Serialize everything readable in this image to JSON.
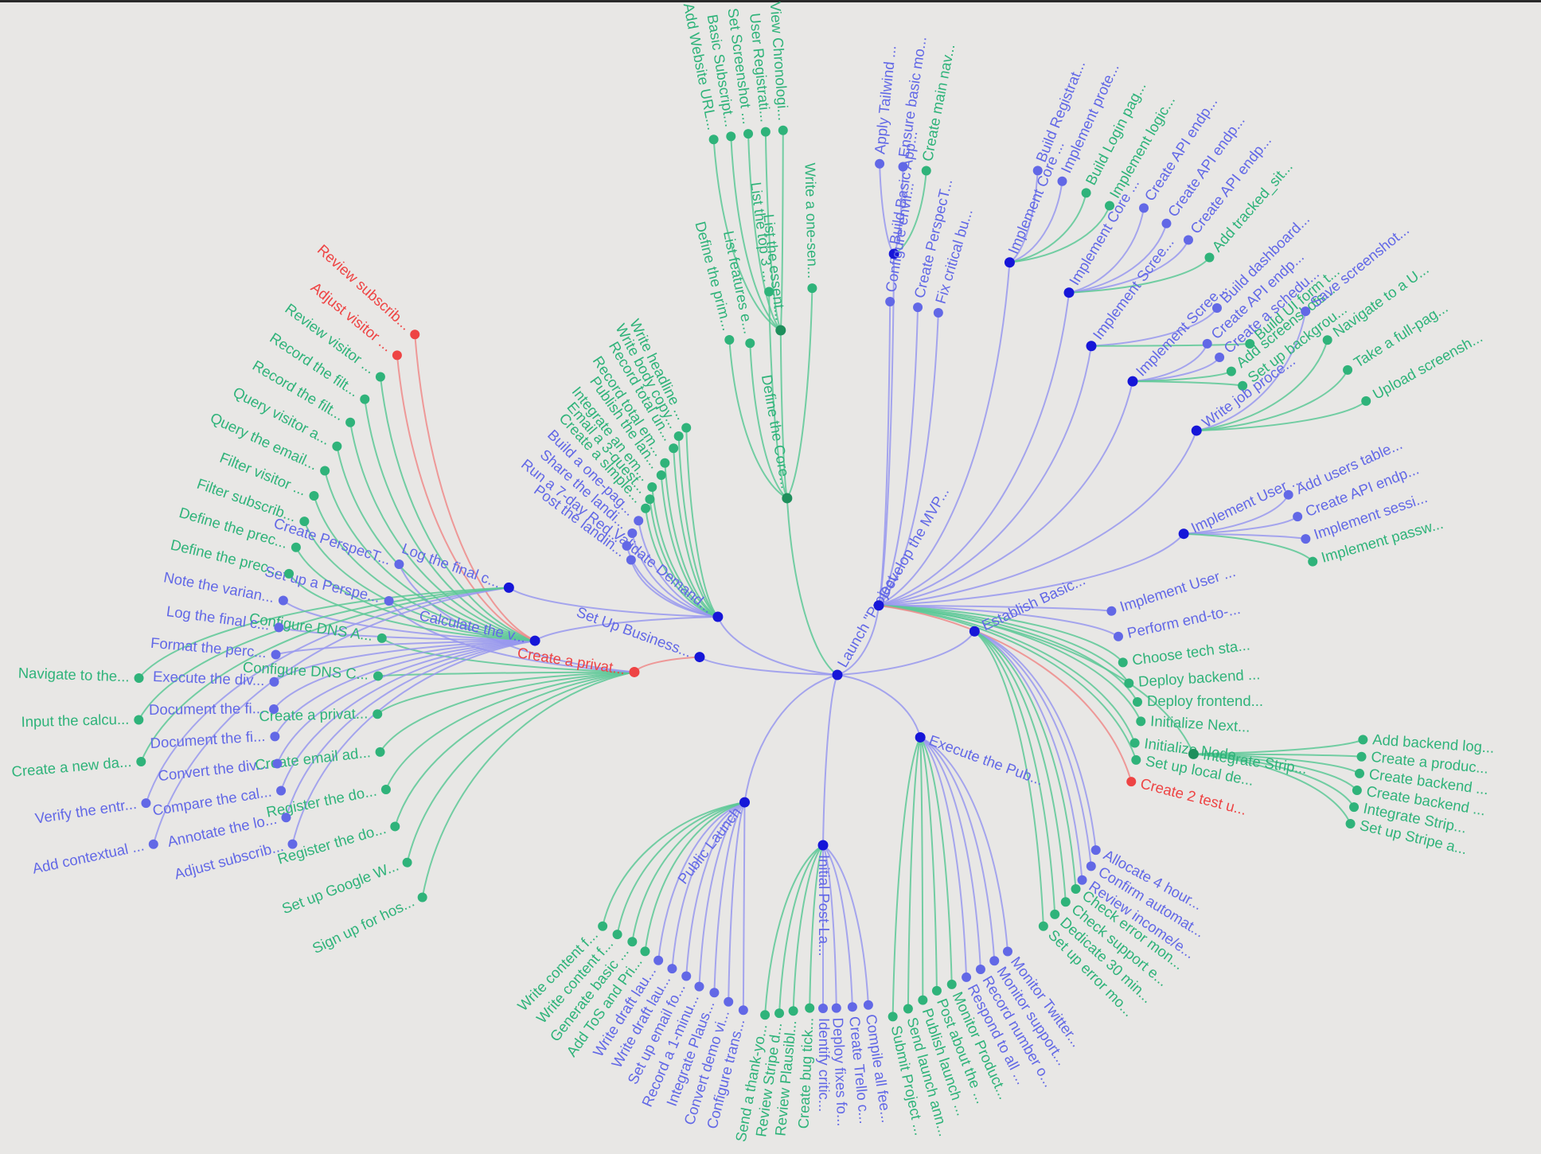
{
  "colors": {
    "pending": "#6268e6",
    "done": "#2fb37a",
    "blocked": "#ee4444",
    "hub": "#1616d8",
    "doneHub": "#1f8f5c",
    "linkPending": "#9898ee",
    "linkDone": "#5cc896",
    "linkBlocked": "#ee8a8a"
  },
  "root": {
    "label": "Launch \"Project..."
  },
  "branches": [
    {
      "label": "Set Up Business...",
      "status": "pending",
      "groups": [
        {
          "label": "Create a privat...",
          "status": "blocked",
          "items": [
            [
              "Sign up for hos...",
              "done"
            ],
            [
              "Set up Google W...",
              "done"
            ],
            [
              "Register the do...",
              "done"
            ],
            [
              "Register the do...",
              "done"
            ],
            [
              "Create email ad...",
              "done"
            ],
            [
              "Create a privat...",
              "done"
            ],
            [
              "Configure DNS C...",
              "done"
            ],
            [
              "Configure DNS A...",
              "done"
            ],
            [
              "Set up a Perspe...",
              "pending"
            ],
            [
              "Create PerspecT...",
              "pending"
            ]
          ]
        }
      ]
    },
    {
      "label": "Validate Demand...",
      "status": "pending",
      "groups": [
        {
          "label": "Calculate the v...",
          "status": "pending",
          "items": [
            [
              "Adjust subscrib...",
              "pending"
            ],
            [
              "Annotate the lo...",
              "pending"
            ],
            [
              "Compare the cal...",
              "pending"
            ],
            [
              "Convert the div...",
              "pending"
            ],
            [
              "Document the fi...",
              "pending"
            ],
            [
              "Document the fi...",
              "pending"
            ],
            [
              "Execute the div...",
              "pending"
            ],
            [
              "Format the perc...",
              "pending"
            ],
            [
              "Log the final c...",
              "pending"
            ],
            [
              "Note the varian...",
              "pending"
            ],
            [
              "Define the prec...",
              "done"
            ],
            [
              "Define the prec...",
              "done"
            ],
            [
              "Filter subscrib...",
              "done"
            ],
            [
              "Filter visitor ...",
              "done"
            ],
            [
              "Query the email...",
              "done"
            ],
            [
              "Query visitor a...",
              "done"
            ],
            [
              "Record the filt...",
              "done"
            ],
            [
              "Record the filt...",
              "done"
            ],
            [
              "Review visitor ...",
              "done"
            ],
            [
              "Adjust visitor ...",
              "blocked"
            ],
            [
              "Review subscrib...",
              "blocked"
            ]
          ]
        },
        {
          "label": "Log the final c...",
          "status": "pending",
          "items": [
            [
              "Add contextual ...",
              "pending"
            ],
            [
              "Verify the entr...",
              "pending"
            ],
            [
              "Create a new da...",
              "done"
            ],
            [
              "Input the calcu...",
              "done"
            ],
            [
              "Navigate to the...",
              "done"
            ]
          ]
        },
        {
          "label": "Post the landin...",
          "status": "pending",
          "items": []
        },
        {
          "label": "Run a 7-day Red...",
          "status": "pending",
          "items": []
        },
        {
          "label": "Share the landi...",
          "status": "pending",
          "items": []
        },
        {
          "label": "Build a one-pag...",
          "status": "pending",
          "items": []
        },
        {
          "label": "Create a simple...",
          "status": "done",
          "items": []
        },
        {
          "label": "Email a 3-quest...",
          "status": "done",
          "items": []
        },
        {
          "label": "Integrate an em...",
          "status": "done",
          "items": []
        },
        {
          "label": "Publish the lan...",
          "status": "done",
          "items": []
        },
        {
          "label": "Record total em...",
          "status": "done",
          "items": []
        },
        {
          "label": "Record total un...",
          "status": "done",
          "items": []
        },
        {
          "label": "Write body copy...",
          "status": "done",
          "items": []
        },
        {
          "label": "Write headline ...",
          "status": "done",
          "items": []
        }
      ]
    },
    {
      "label": "Define the Core...",
      "status": "done",
      "groups": [
        {
          "label": "Define the prim...",
          "status": "done",
          "items": []
        },
        {
          "label": "List features e...",
          "status": "done",
          "items": []
        },
        {
          "label": "List the essent...",
          "status": "done",
          "items": [
            [
              "Add Website URL...",
              "done"
            ],
            [
              "Basic Subscript...",
              "done"
            ],
            [
              "Set Screenshot ...",
              "done"
            ],
            [
              "User Registrati...",
              "done"
            ],
            [
              "View Chronologi...",
              "done"
            ]
          ]
        },
        {
          "label": "List the top 3 ...",
          "status": "done",
          "items": []
        },
        {
          "label": "Write a one-sen...",
          "status": "done",
          "items": []
        }
      ]
    },
    {
      "label": "Develop the MVP...",
      "status": "pending",
      "groups": [
        {
          "label": "Build Basic App...",
          "status": "pending",
          "items": [
            [
              "Apply Tailwind ...",
              "pending"
            ],
            [
              "Ensure basic mo...",
              "pending"
            ],
            [
              "Create main nav...",
              "done"
            ]
          ]
        },
        {
          "label": "Configure envir...",
          "status": "pending",
          "items": []
        },
        {
          "label": "Create PerspecT...",
          "status": "pending",
          "items": []
        },
        {
          "label": "Fix critical bu...",
          "status": "pending",
          "items": []
        },
        {
          "label": "Implement Core ...",
          "status": "pending",
          "items": [
            [
              "Build Registrat...",
              "pending"
            ],
            [
              "Implement prote...",
              "pending"
            ],
            [
              "Build Login pag...",
              "done"
            ],
            [
              "Implement logic...",
              "done"
            ]
          ]
        },
        {
          "label": "Implement Core ...",
          "status": "pending",
          "items": [
            [
              "Create API endp...",
              "pending"
            ],
            [
              "Create API endp...",
              "pending"
            ],
            [
              "Create API endp...",
              "pending"
            ],
            [
              "Add tracked_sit...",
              "done"
            ]
          ]
        },
        {
          "label": "Implement Scree...",
          "status": "pending",
          "items": [
            [
              "Build dashboard...",
              "pending"
            ],
            [
              "Build UI form t...",
              "done"
            ]
          ]
        },
        {
          "label": "Implement Scree...",
          "status": "pending",
          "items": [
            [
              "Create API endp...",
              "pending"
            ],
            [
              "Create a schedu...",
              "pending"
            ],
            [
              "Add screenshots...",
              "done"
            ],
            [
              "Set up backgrou...",
              "done"
            ]
          ]
        },
        {
          "label": "Write job proce...",
          "status": "pending",
          "items": [
            [
              "Save screenshot...",
              "pending"
            ],
            [
              "Navigate to a U...",
              "done"
            ],
            [
              "Take a full-pag...",
              "done"
            ],
            [
              "Upload screensh...",
              "done"
            ]
          ]
        },
        {
          "label": "Implement User ...",
          "status": "pending",
          "items": [
            [
              "Add users table...",
              "pending"
            ],
            [
              "Create API endp...",
              "pending"
            ],
            [
              "Implement sessi...",
              "pending"
            ],
            [
              "Implement passw...",
              "done"
            ]
          ]
        },
        {
          "label": "Implement User ...",
          "status": "pending",
          "items": []
        },
        {
          "label": "Perform end-to-...",
          "status": "pending",
          "items": []
        },
        {
          "label": "Choose tech sta...",
          "status": "done",
          "items": []
        },
        {
          "label": "Deploy backend ...",
          "status": "done",
          "items": []
        },
        {
          "label": "Deploy frontend...",
          "status": "done",
          "items": []
        },
        {
          "label": "Initialize Next...",
          "status": "done",
          "items": []
        },
        {
          "label": "Initialize Node...",
          "status": "done",
          "items": []
        },
        {
          "label": "Integrate Strip...",
          "status": "done",
          "items": [
            [
              "Add backend log...",
              "done"
            ],
            [
              "Create a produc...",
              "done"
            ],
            [
              "Create backend ...",
              "done"
            ],
            [
              "Create backend ...",
              "done"
            ],
            [
              "Integrate Strip...",
              "done"
            ],
            [
              "Set up Stripe a...",
              "done"
            ]
          ]
        },
        {
          "label": "Set up local de...",
          "status": "done",
          "items": []
        },
        {
          "label": "Create 2 test u...",
          "status": "blocked",
          "items": []
        }
      ]
    },
    {
      "label": "Establish Basic...",
      "status": "pending",
      "groups": [
        {
          "label": "Allocate 4 hour...",
          "status": "pending",
          "items": []
        },
        {
          "label": "Confirm automat...",
          "status": "pending",
          "items": []
        },
        {
          "label": "Review income/e...",
          "status": "pending",
          "items": []
        },
        {
          "label": "Check error mon...",
          "status": "done",
          "items": []
        },
        {
          "label": "Check support e...",
          "status": "done",
          "items": []
        },
        {
          "label": "Dedicate 30 min...",
          "status": "done",
          "items": []
        },
        {
          "label": "Set up error mo...",
          "status": "done",
          "items": []
        }
      ]
    },
    {
      "label": "Execute the Pub...",
      "status": "pending",
      "groups": [
        {
          "label": "Monitor Twitter...",
          "status": "pending",
          "items": []
        },
        {
          "label": "Monitor support...",
          "status": "pending",
          "items": []
        },
        {
          "label": "Record number o...",
          "status": "pending",
          "items": []
        },
        {
          "label": "Respond to all ...",
          "status": "pending",
          "items": []
        },
        {
          "label": "Monitor Product...",
          "status": "done",
          "items": []
        },
        {
          "label": "Post about the ...",
          "status": "done",
          "items": []
        },
        {
          "label": "Publish launch ...",
          "status": "done",
          "items": []
        },
        {
          "label": "Send launch ann...",
          "status": "done",
          "items": []
        },
        {
          "label": "Submit Project ...",
          "status": "done",
          "items": []
        }
      ]
    },
    {
      "label": "Initial Post-La...",
      "status": "pending",
      "groups": [
        {
          "label": "Compile all fee...",
          "status": "pending",
          "items": []
        },
        {
          "label": "Create Trello c...",
          "status": "pending",
          "items": []
        },
        {
          "label": "Deploy fixes fo...",
          "status": "pending",
          "items": []
        },
        {
          "label": "Identify critic...",
          "status": "pending",
          "items": []
        },
        {
          "label": "Create bug tick...",
          "status": "done",
          "items": []
        },
        {
          "label": "Review Plausibl...",
          "status": "done",
          "items": []
        },
        {
          "label": "Review Stripe d...",
          "status": "done",
          "items": []
        },
        {
          "label": "Send a thank-yo...",
          "status": "done",
          "items": []
        }
      ]
    },
    {
      "label": "Public Launch",
      "status": "pending",
      "groups": [
        {
          "label": "Configure trans...",
          "status": "pending",
          "items": []
        },
        {
          "label": "Convert demo vi...",
          "status": "pending",
          "items": []
        },
        {
          "label": "Integrate Plaus...",
          "status": "pending",
          "items": []
        },
        {
          "label": "Record a 1-minu...",
          "status": "pending",
          "items": []
        },
        {
          "label": "Set up email fo...",
          "status": "pending",
          "items": []
        },
        {
          "label": "Write draft lau...",
          "status": "pending",
          "items": []
        },
        {
          "label": "Write draft lau...",
          "status": "pending",
          "items": []
        },
        {
          "label": "Add ToS and Pri...",
          "status": "done",
          "items": []
        },
        {
          "label": "Generate basic ...",
          "status": "done",
          "items": []
        },
        {
          "label": "Write content f...",
          "status": "done",
          "items": []
        },
        {
          "label": "Write content f...",
          "status": "done",
          "items": []
        }
      ]
    }
  ]
}
